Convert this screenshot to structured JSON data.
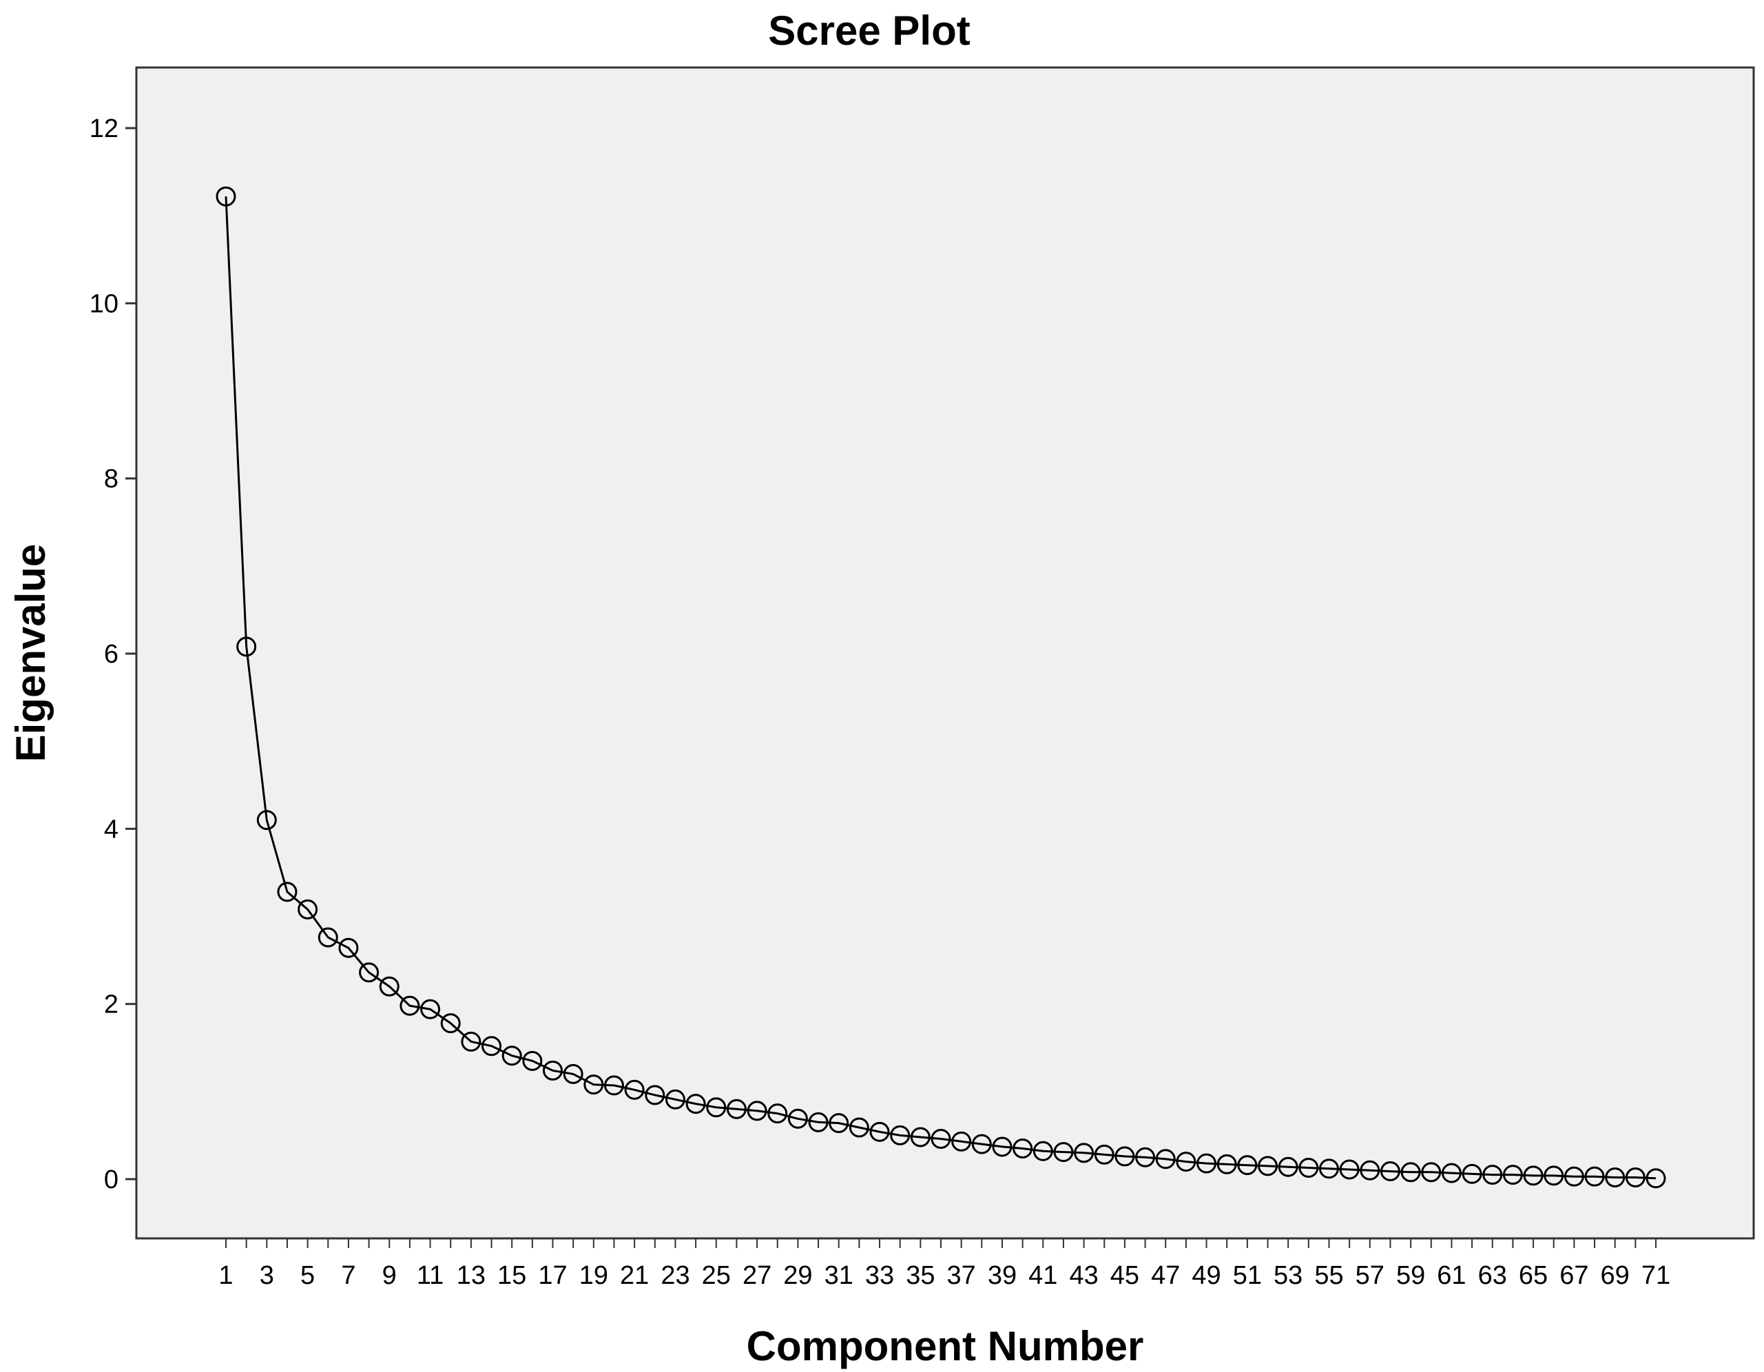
{
  "chart_data": {
    "type": "line",
    "title": "Scree Plot",
    "xlabel": "Component Number",
    "ylabel": "Eigenvalue",
    "xlim": [
      1,
      71
    ],
    "ylim": [
      0,
      12
    ],
    "x_tick_labels": [
      "1",
      "3",
      "5",
      "7",
      "9",
      "11",
      "13",
      "15",
      "17",
      "19",
      "21",
      "23",
      "25",
      "27",
      "29",
      "31",
      "33",
      "35",
      "37",
      "39",
      "41",
      "43",
      "45",
      "47",
      "49",
      "51",
      "53",
      "55",
      "57",
      "59",
      "61",
      "63",
      "65",
      "67",
      "69",
      "71"
    ],
    "y_tick_labels": [
      "0",
      "2",
      "4",
      "6",
      "8",
      "10",
      "12"
    ],
    "y_ticks": [
      0,
      2,
      4,
      6,
      8,
      10,
      12
    ],
    "grid": false,
    "plot_background": "#f0f0f0",
    "line_color": "#000000",
    "marker": "open-circle",
    "x": [
      1,
      2,
      3,
      4,
      5,
      6,
      7,
      8,
      9,
      10,
      11,
      12,
      13,
      14,
      15,
      16,
      17,
      18,
      19,
      20,
      21,
      22,
      23,
      24,
      25,
      26,
      27,
      28,
      29,
      30,
      31,
      32,
      33,
      34,
      35,
      36,
      37,
      38,
      39,
      40,
      41,
      42,
      43,
      44,
      45,
      46,
      47,
      48,
      49,
      50,
      51,
      52,
      53,
      54,
      55,
      56,
      57,
      58,
      59,
      60,
      61,
      62,
      63,
      64,
      65,
      66,
      67,
      68,
      69,
      70,
      71
    ],
    "values": [
      11.22,
      6.08,
      4.1,
      3.28,
      3.08,
      2.76,
      2.64,
      2.36,
      2.2,
      1.98,
      1.94,
      1.78,
      1.57,
      1.52,
      1.41,
      1.35,
      1.24,
      1.2,
      1.08,
      1.07,
      1.02,
      0.96,
      0.91,
      0.86,
      0.82,
      0.8,
      0.78,
      0.75,
      0.69,
      0.65,
      0.64,
      0.59,
      0.54,
      0.5,
      0.48,
      0.46,
      0.43,
      0.4,
      0.37,
      0.35,
      0.32,
      0.31,
      0.3,
      0.28,
      0.26,
      0.25,
      0.23,
      0.2,
      0.18,
      0.17,
      0.16,
      0.15,
      0.14,
      0.13,
      0.12,
      0.11,
      0.1,
      0.09,
      0.08,
      0.08,
      0.07,
      0.06,
      0.05,
      0.05,
      0.04,
      0.04,
      0.03,
      0.03,
      0.02,
      0.02,
      0.01
    ]
  }
}
